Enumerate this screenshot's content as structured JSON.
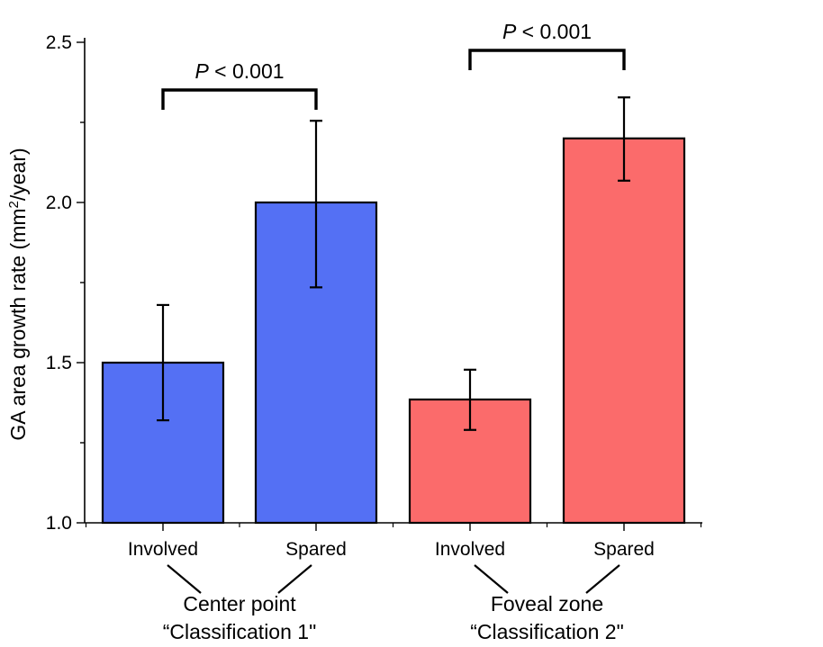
{
  "chart_data": {
    "type": "bar",
    "ylabel": "GA area growth rate (mm²/year)",
    "ylabel_parts": {
      "pre": "GA area growth rate (mm",
      "sup": "2",
      "post": "/year)"
    },
    "ylim": [
      1.0,
      2.5
    ],
    "yticks": [
      "1.0",
      "1.5",
      "2.0",
      "2.5"
    ],
    "grid": false,
    "categories": [
      "Involved",
      "Spared",
      "Involved",
      "Spared"
    ],
    "values": [
      1.5,
      2.0,
      1.385,
      2.2
    ],
    "error_low": [
      1.32,
      1.735,
      1.29,
      2.068
    ],
    "error_high": [
      1.68,
      2.255,
      1.478,
      2.328
    ],
    "bar_colors": [
      "#5470f4",
      "#5470f4",
      "#fb6b6b",
      "#fb6b6b"
    ],
    "groups": [
      {
        "line1": "Center point",
        "line2": "“Classification 1\"",
        "bars": [
          0,
          1
        ]
      },
      {
        "line1": "Foveal zone",
        "line2": "“Classification 2\"",
        "bars": [
          2,
          3
        ]
      }
    ],
    "annotations": [
      {
        "p_label": "P",
        "rest": " < 0.001",
        "bars": [
          0,
          1
        ]
      },
      {
        "p_label": "P",
        "rest": " < 0.001",
        "bars": [
          2,
          3
        ]
      }
    ]
  }
}
